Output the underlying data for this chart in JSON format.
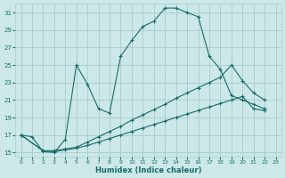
{
  "xlabel": "Humidex (Indice chaleur)",
  "xlim": [
    -0.5,
    23.5
  ],
  "ylim": [
    14.5,
    32
  ],
  "yticks": [
    15,
    17,
    19,
    21,
    23,
    25,
    27,
    29,
    31
  ],
  "xticks": [
    0,
    1,
    2,
    3,
    4,
    5,
    6,
    7,
    8,
    9,
    10,
    11,
    12,
    13,
    14,
    15,
    16,
    17,
    18,
    19,
    20,
    21,
    22,
    23
  ],
  "background_color": "#cce8e8",
  "grid_color": "#aacccc",
  "line_color": "#1a6b6b",
  "line1_x": [
    0,
    1,
    2,
    3,
    4,
    5,
    6,
    7,
    8,
    9,
    10,
    11,
    12,
    13,
    14,
    15,
    16,
    17,
    18,
    19,
    20,
    21,
    22
  ],
  "line1_y": [
    17,
    16.8,
    15.1,
    15.0,
    16.5,
    25.0,
    22.8,
    20.0,
    19.5,
    26.0,
    27.8,
    29.4,
    30.0,
    31.5,
    31.5,
    31.0,
    30.5,
    26.0,
    24.5,
    21.5,
    21.0,
    20.5,
    20.0
  ],
  "line2_x": [
    0,
    2,
    3,
    4,
    5,
    6,
    7,
    8,
    9,
    10,
    11,
    12,
    13,
    14,
    15,
    16,
    17,
    18,
    19,
    20,
    21,
    22
  ],
  "line2_y": [
    17,
    15.2,
    15.2,
    15.4,
    15.6,
    16.2,
    16.8,
    17.4,
    18.0,
    18.7,
    19.3,
    19.9,
    20.5,
    21.2,
    21.8,
    22.4,
    23.0,
    23.6,
    25.0,
    23.2,
    21.8,
    21.0
  ],
  "line3_x": [
    0,
    2,
    3,
    4,
    5,
    6,
    7,
    8,
    9,
    10,
    11,
    12,
    13,
    14,
    15,
    16,
    17,
    18,
    19,
    20,
    21,
    22
  ],
  "line3_y": [
    17,
    15.2,
    15.1,
    15.3,
    15.5,
    15.8,
    16.2,
    16.6,
    17.0,
    17.4,
    17.8,
    18.2,
    18.6,
    19.0,
    19.4,
    19.8,
    20.2,
    20.6,
    21.0,
    21.4,
    20.0,
    19.8
  ]
}
